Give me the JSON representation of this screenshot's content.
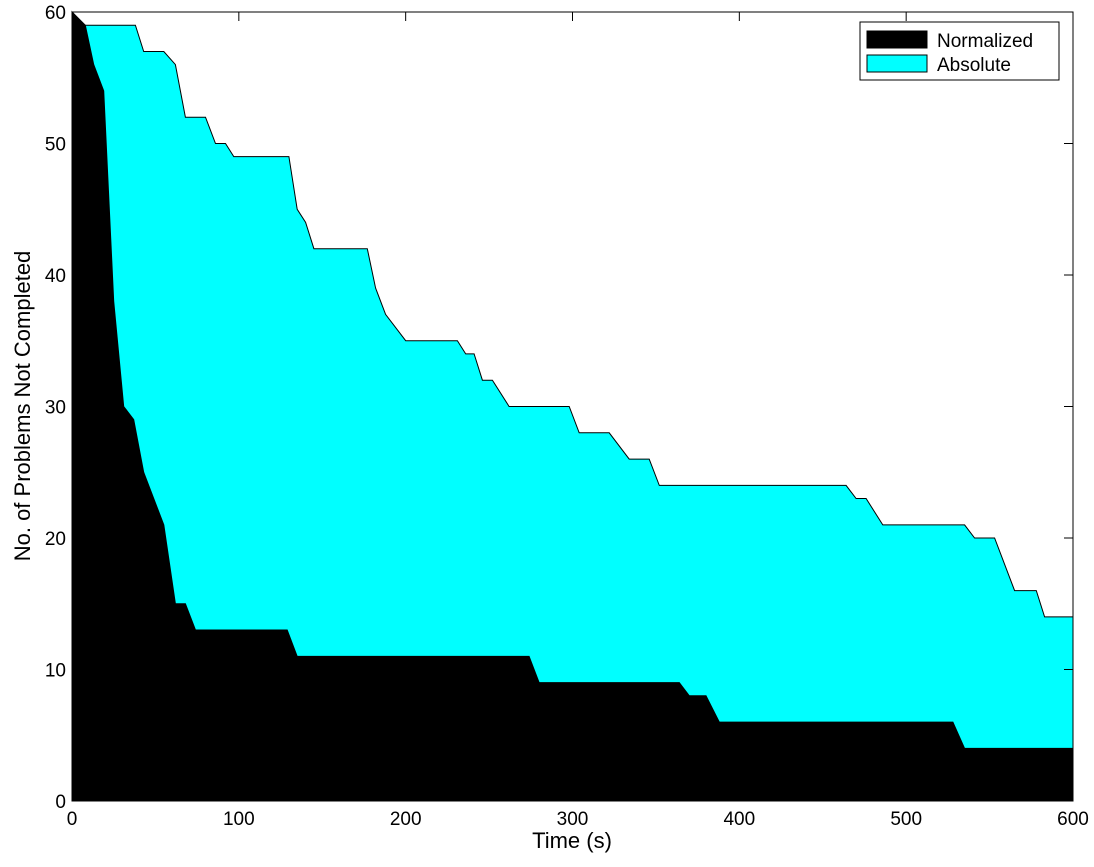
{
  "chart_data": {
    "type": "area",
    "title": "",
    "xlabel": "Time (s)",
    "ylabel": "No. of Problems Not Completed",
    "xlim": [
      0,
      600
    ],
    "ylim": [
      0,
      60
    ],
    "xticks": [
      0,
      100,
      200,
      300,
      400,
      500,
      600
    ],
    "yticks": [
      0,
      10,
      20,
      30,
      40,
      50,
      60
    ],
    "grid": false,
    "legend_position": "top-right",
    "series": [
      {
        "name": "Absolute",
        "color": "#00ffff",
        "points": [
          [
            0,
            60
          ],
          [
            7,
            59
          ],
          [
            38,
            59
          ],
          [
            43,
            57
          ],
          [
            55,
            57
          ],
          [
            62,
            56
          ],
          [
            68,
            52
          ],
          [
            80,
            52
          ],
          [
            86,
            50
          ],
          [
            92,
            50
          ],
          [
            97,
            49
          ],
          [
            130,
            49
          ],
          [
            135,
            45
          ],
          [
            140,
            44
          ],
          [
            145,
            42
          ],
          [
            177,
            42
          ],
          [
            182,
            39
          ],
          [
            188,
            37
          ],
          [
            200,
            35
          ],
          [
            231,
            35
          ],
          [
            236,
            34
          ],
          [
            241,
            34
          ],
          [
            246,
            32
          ],
          [
            252,
            32
          ],
          [
            262,
            30
          ],
          [
            298,
            30
          ],
          [
            304,
            28
          ],
          [
            322,
            28
          ],
          [
            334,
            26
          ],
          [
            346,
            26
          ],
          [
            352,
            24
          ],
          [
            464,
            24
          ],
          [
            470,
            23
          ],
          [
            476,
            23
          ],
          [
            486,
            21
          ],
          [
            535,
            21
          ],
          [
            541,
            20
          ],
          [
            553,
            20
          ],
          [
            565,
            16
          ],
          [
            578,
            16
          ],
          [
            583,
            14
          ],
          [
            600,
            14
          ]
        ]
      },
      {
        "name": "Normalized",
        "color": "#000000",
        "points": [
          [
            0,
            60
          ],
          [
            8,
            59
          ],
          [
            13,
            56
          ],
          [
            19,
            54
          ],
          [
            25,
            38
          ],
          [
            31,
            30
          ],
          [
            37,
            29
          ],
          [
            43,
            25
          ],
          [
            55,
            21
          ],
          [
            62,
            15
          ],
          [
            68,
            15
          ],
          [
            74,
            13
          ],
          [
            129,
            13
          ],
          [
            135,
            11
          ],
          [
            274,
            11
          ],
          [
            280,
            9
          ],
          [
            364,
            9
          ],
          [
            370,
            8
          ],
          [
            380,
            8
          ],
          [
            388,
            6
          ],
          [
            528,
            6
          ],
          [
            535,
            4
          ],
          [
            600,
            4
          ]
        ]
      }
    ]
  }
}
